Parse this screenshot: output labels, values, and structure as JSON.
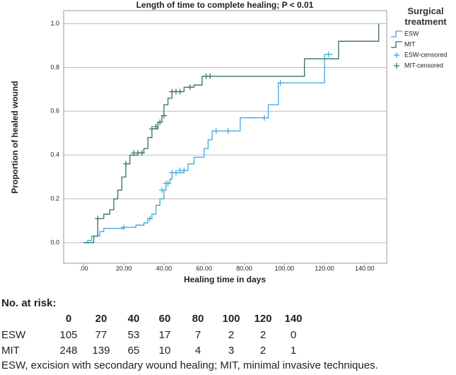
{
  "chart_data": {
    "type": "step",
    "title": "Length of time to complete healing; P < 0.01",
    "xlabel": "Healing time in days",
    "ylabel": "Proportion of healed wound",
    "xlim": [
      -10,
      151
    ],
    "ylim": [
      -0.094,
      1.06
    ],
    "xticks": [
      {
        "value": 0,
        "label": ".00"
      },
      {
        "value": 20,
        "label": "20.00"
      },
      {
        "value": 40,
        "label": "40.00"
      },
      {
        "value": 60,
        "label": "60.00"
      },
      {
        "value": 80,
        "label": "80.00"
      },
      {
        "value": 100,
        "label": "100.00"
      },
      {
        "value": 120,
        "label": "120.00"
      },
      {
        "value": 140,
        "label": "140.00"
      }
    ],
    "yticks": [
      {
        "value": 0,
        "label": "0.0"
      },
      0.2,
      0.4,
      0.6,
      0.8,
      {
        "value": 1,
        "label": "1.0"
      }
    ],
    "grid": true,
    "legend_title": "Surgical treatment",
    "series": [
      {
        "name": "ESW",
        "color": "#3ea5dc",
        "x": [
          0,
          2,
          4,
          8,
          10,
          20,
          26,
          30,
          32,
          34,
          36,
          38,
          40,
          41,
          43,
          44,
          50,
          52,
          55,
          60,
          62,
          64,
          78,
          92,
          97,
          120,
          124
        ],
        "values": [
          0,
          0.01,
          0.03,
          0.05,
          0.065,
          0.07,
          0.08,
          0.09,
          0.11,
          0.13,
          0.17,
          0.2,
          0.24,
          0.27,
          0.29,
          0.32,
          0.33,
          0.36,
          0.39,
          0.43,
          0.47,
          0.51,
          0.57,
          0.63,
          0.73,
          0.86,
          0.86
        ]
      },
      {
        "name": "MIT",
        "color": "#2f6f6a",
        "x": [
          0,
          5,
          7,
          10,
          13,
          15,
          17,
          19,
          21,
          23,
          27,
          30,
          32,
          34,
          37,
          39,
          40,
          42,
          44,
          50,
          55,
          59,
          110,
          127,
          147
        ],
        "values": [
          0,
          0.03,
          0.11,
          0.13,
          0.15,
          0.2,
          0.24,
          0.3,
          0.36,
          0.4,
          0.41,
          0.43,
          0.48,
          0.52,
          0.55,
          0.58,
          0.63,
          0.66,
          0.69,
          0.71,
          0.72,
          0.76,
          0.84,
          0.92,
          1.0
        ]
      },
      {
        "name": "ESW-censored",
        "color": "#3ea5dc",
        "censored": true,
        "x": [
          20,
          33,
          39,
          41,
          42,
          44,
          46,
          48,
          50,
          66,
          72,
          90,
          98,
          122
        ],
        "values": [
          0.07,
          0.11,
          0.24,
          0.27,
          0.27,
          0.32,
          0.32,
          0.33,
          0.33,
          0.51,
          0.51,
          0.57,
          0.73,
          0.86
        ]
      },
      {
        "name": "MIT-censored",
        "color": "#2f6f6a",
        "censored": true,
        "x": [
          7,
          21,
          25,
          27,
          29,
          34,
          36,
          38,
          40,
          44,
          46,
          48,
          53,
          61,
          63
        ],
        "values": [
          0.11,
          0.36,
          0.41,
          0.41,
          0.41,
          0.52,
          0.53,
          0.55,
          0.58,
          0.69,
          0.69,
          0.69,
          0.71,
          0.76,
          0.76
        ]
      }
    ]
  },
  "risk_table": {
    "title": "No. at risk:",
    "times": [
      0,
      20,
      40,
      60,
      80,
      100,
      120,
      140
    ],
    "rows": [
      {
        "name": "ESW",
        "values": [
          105,
          77,
          53,
          17,
          7,
          2,
          2,
          0
        ]
      },
      {
        "name": "MIT",
        "values": [
          248,
          139,
          65,
          10,
          4,
          3,
          2,
          1
        ]
      }
    ]
  },
  "caption": "ESW, excision with secondary wound healing; MIT, minimal invasive techniques."
}
